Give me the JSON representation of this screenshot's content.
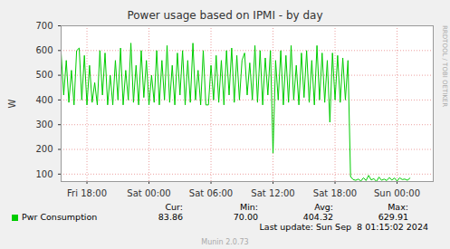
{
  "chart_data": {
    "type": "line",
    "title": "Power usage based on IPMI - by day",
    "y_label": "W",
    "side_text": "RRDTOOL / TOBI OETIKER",
    "x": [
      -2.5,
      -2.25,
      -2,
      -1.75,
      -1.5,
      -1.25,
      -1,
      -0.75,
      -0.5,
      -0.25,
      0,
      0.25,
      0.5,
      0.75,
      1,
      1.25,
      1.5,
      1.75,
      2,
      2.25,
      2.5,
      2.75,
      3,
      3.25,
      3.5,
      3.75,
      4,
      4.25,
      4.5,
      4.75,
      5,
      5.25,
      5.5,
      5.75,
      6,
      6.25,
      6.5,
      6.75,
      7,
      7.25,
      7.5,
      7.75,
      8,
      8.25,
      8.5,
      8.75,
      9,
      9.25,
      9.5,
      9.75,
      10,
      10.25,
      10.5,
      10.75,
      11,
      11.25,
      11.5,
      11.75,
      12,
      12.25,
      12.5,
      12.75,
      13,
      13.25,
      13.5,
      13.75,
      14,
      14.25,
      14.5,
      14.75,
      15,
      15.25,
      15.5,
      15.75,
      16,
      16.25,
      16.5,
      16.75,
      17,
      17.25,
      17.5,
      17.75,
      18,
      18.25,
      18.5,
      18.75,
      19,
      19.25,
      19.5,
      19.75,
      20,
      20.25,
      20.5,
      20.75,
      21,
      21.25,
      21.5,
      21.75,
      22,
      22.25,
      22.5,
      22.75,
      23,
      23.25,
      23.5,
      23.75,
      24,
      24.25,
      24.5,
      24.75,
      25,
      25.25,
      25.5,
      25.75,
      26,
      26.25,
      26.5,
      26.75,
      27,
      27.25,
      27.5,
      27.75,
      28,
      28.25,
      28.5,
      28.75,
      29,
      29.25,
      29.5,
      29.75,
      30,
      30.25,
      30.5,
      30.75,
      31,
      31.25
    ],
    "series": [
      {
        "name": "Pwr Consumption",
        "color": "#00cc00",
        "values": [
          590,
          420,
          560,
          390,
          520,
          380,
          600,
          610,
          400,
          580,
          380,
          540,
          390,
          470,
          380,
          600,
          420,
          590,
          380,
          500,
          380,
          560,
          400,
          610,
          380,
          520,
          400,
          630,
          390,
          540,
          380,
          600,
          410,
          560,
          380,
          500,
          390,
          600,
          380,
          560,
          400,
          620,
          390,
          540,
          380,
          590,
          420,
          600,
          380,
          560,
          390,
          629.91,
          400,
          520,
          380,
          600,
          380,
          380,
          540,
          400,
          580,
          390,
          560,
          380,
          600,
          420,
          610,
          390,
          580,
          400,
          560,
          590,
          420,
          550,
          400,
          620,
          390,
          600,
          380,
          570,
          420,
          600,
          185,
          560,
          400,
          600,
          380,
          580,
          390,
          620,
          400,
          540,
          380,
          590,
          410,
          600,
          390,
          560,
          380,
          620,
          400,
          590,
          390,
          560,
          310,
          590,
          400,
          580,
          390,
          570,
          400,
          560,
          90,
          78,
          75,
          80,
          72,
          85,
          74,
          95,
          76,
          82,
          70,
          88,
          75,
          80,
          74,
          86,
          76,
          84,
          72,
          85,
          78,
          80,
          75,
          83.86
        ]
      }
    ],
    "xlim": [
      -2.5,
      33.5
    ],
    "xticks": [
      {
        "value": 0,
        "label": "Fri 18:00"
      },
      {
        "value": 6,
        "label": "Sat 00:00"
      },
      {
        "value": 12,
        "label": "Sat 06:00"
      },
      {
        "value": 18,
        "label": "Sat 12:00"
      },
      {
        "value": 24,
        "label": "Sat 18:00"
      },
      {
        "value": 30,
        "label": "Sun 00:00"
      }
    ],
    "ylim": [
      70,
      700
    ],
    "yticks": [
      100,
      200,
      300,
      400,
      500,
      600,
      700
    ],
    "grid": true,
    "stats": [
      {
        "label": "Cur:",
        "value": "83.86"
      },
      {
        "label": "Min:",
        "value": "70.00"
      },
      {
        "label": "Avg:",
        "value": "404.32"
      },
      {
        "label": "Max:",
        "value": "629.91"
      }
    ],
    "last_update": "Last update: Sun Sep  8 01:15:02 2024",
    "credit": "Munin 2.0.73"
  }
}
